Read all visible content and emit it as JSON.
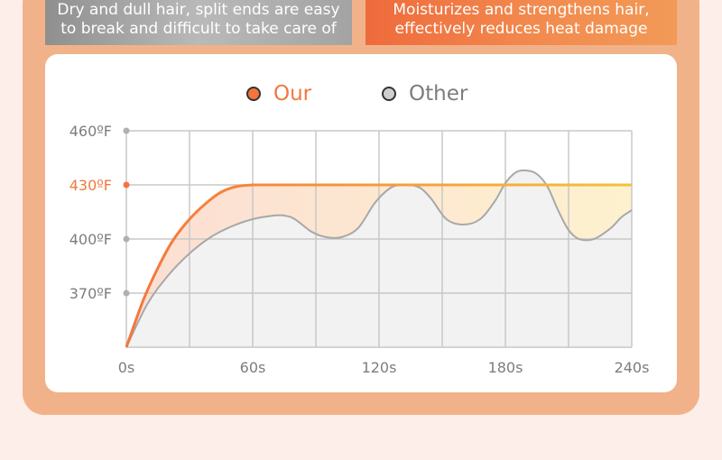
{
  "banners": {
    "left": [
      "Dry and dull hair, split ends are easy",
      "to break and difficult to take care of"
    ],
    "right": [
      "Moisturizes and strengthens hair,",
      "effectively reduces heat damage"
    ]
  },
  "colors": {
    "our": "#f5743e",
    "our_text": "#f0793f",
    "our_line_end": "#f3c23a",
    "other": "#a8a8a8",
    "other_fill": "#f2f2f2",
    "grid": "#c8c8c8",
    "label": "#7d7d7d"
  },
  "chart_data": {
    "type": "line",
    "legend": [
      "Our",
      "Other"
    ],
    "legend_position": "top-center",
    "grid": true,
    "xlim": [
      0,
      240
    ],
    "ylim": [
      340,
      460
    ],
    "x_gridlines": [
      0,
      30,
      60,
      90,
      120,
      150,
      180,
      210,
      240
    ],
    "y_gridlines": [
      340,
      370,
      400,
      430,
      460
    ],
    "x_ticks": [
      {
        "value": 0,
        "label": "0s"
      },
      {
        "value": 60,
        "label": "60s"
      },
      {
        "value": 120,
        "label": "120s"
      },
      {
        "value": 180,
        "label": "180s"
      },
      {
        "value": 240,
        "label": "240s"
      }
    ],
    "y_ticks": [
      {
        "value": 460,
        "label": "460ºF"
      },
      {
        "value": 430,
        "label": "430ºF",
        "highlight": true
      },
      {
        "value": 400,
        "label": "400ºF"
      },
      {
        "value": 370,
        "label": "370ºF"
      }
    ],
    "series": [
      {
        "name": "Our",
        "x": [
          0,
          8,
          15,
          22,
          30,
          38,
          45,
          52,
          60,
          240
        ],
        "y": [
          340,
          366,
          384,
          399,
          411,
          420,
          426,
          429,
          430,
          430
        ]
      },
      {
        "name": "Other",
        "x": [
          0,
          10,
          20,
          30,
          40,
          50,
          60,
          70,
          75,
          80,
          88,
          95,
          102,
          110,
          118,
          125,
          130,
          135,
          140,
          145,
          152,
          160,
          168,
          175,
          180,
          185,
          190,
          195,
          200,
          205,
          210,
          215,
          222,
          230,
          235,
          240
        ],
        "y": [
          340,
          364,
          380,
          392,
          401,
          407,
          411,
          413,
          413,
          411,
          404,
          401,
          401,
          406,
          420,
          428,
          430,
          430,
          428,
          422,
          411,
          408,
          411,
          421,
          431,
          437,
          438,
          436,
          429,
          416,
          405,
          400,
          400,
          406,
          412,
          416
        ]
      }
    ]
  }
}
